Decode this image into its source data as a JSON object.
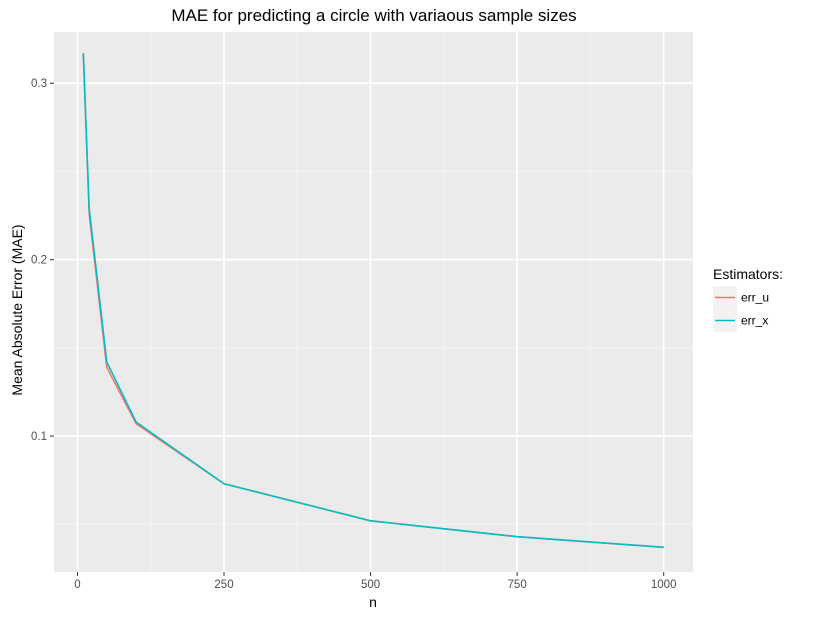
{
  "chart_data": {
    "type": "line",
    "title": "MAE for predicting a circle with variaous sample sizes",
    "xlabel": "n",
    "ylabel": "Mean Absolute Error (MAE)",
    "xlim": [
      -40,
      1050
    ],
    "ylim": [
      0.023,
      0.329
    ],
    "x_ticks": [
      0,
      250,
      500,
      750,
      1000
    ],
    "y_ticks": [
      0.1,
      0.2,
      0.3
    ],
    "x_tick_labels": [
      "0",
      "250",
      "500",
      "750",
      "1000"
    ],
    "y_tick_labels": [
      "0.1",
      "0.2",
      "0.3"
    ],
    "grid": true,
    "legend": {
      "title": "Estimators:",
      "position": "right"
    },
    "series": [
      {
        "name": "err_u",
        "color": "#F8766D",
        "x": [
          10,
          20,
          50,
          100,
          250,
          500,
          750,
          1000
        ],
        "y": [
          0.317,
          0.226,
          0.139,
          0.107,
          0.073,
          0.052,
          0.043,
          0.037
        ]
      },
      {
        "name": "err_x",
        "color": "#00BFC4",
        "x": [
          10,
          20,
          50,
          100,
          250,
          500,
          750,
          1000
        ],
        "y": [
          0.317,
          0.229,
          0.142,
          0.108,
          0.073,
          0.052,
          0.043,
          0.037
        ]
      }
    ]
  }
}
